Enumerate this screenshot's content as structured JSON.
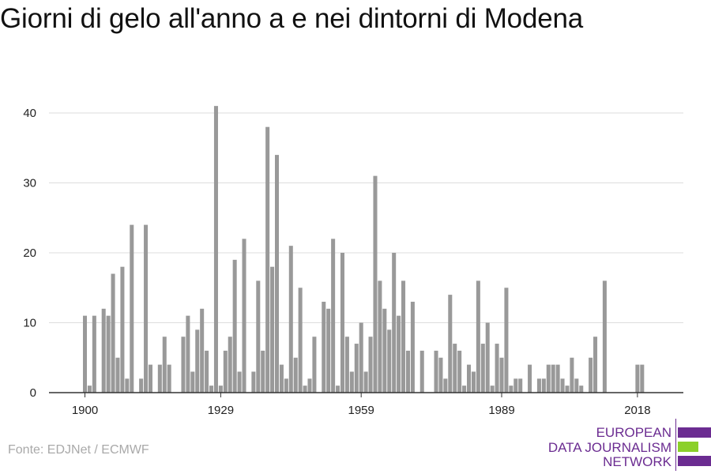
{
  "title": "Giorni di gelo all'anno a e nei dintorni di Modena",
  "source": "Fonte: EDJNet / ECMWF",
  "logo": {
    "line1": "EUROPEAN",
    "line2": "DATA JOURNALISM",
    "line3": "NETWORK",
    "purple": "#6b2c91",
    "green": "#8bd02a"
  },
  "colors": {
    "bar": "#999999",
    "grid": "#dddddd",
    "axis": "#333333"
  },
  "chart_data": {
    "type": "bar",
    "title": "Giorni di gelo all'anno a e nei dintorni di Modena",
    "xlabel": "",
    "ylabel": "",
    "ylim": [
      0,
      45
    ],
    "yticks": [
      0,
      10,
      20,
      30,
      40
    ],
    "xticks": [
      1900,
      1929,
      1959,
      1989,
      2018
    ],
    "grid": true,
    "x": [
      1900,
      1901,
      1902,
      1903,
      1904,
      1905,
      1906,
      1907,
      1908,
      1909,
      1910,
      1911,
      1912,
      1913,
      1914,
      1915,
      1916,
      1917,
      1918,
      1919,
      1920,
      1921,
      1922,
      1923,
      1924,
      1925,
      1926,
      1927,
      1928,
      1929,
      1930,
      1931,
      1932,
      1933,
      1934,
      1935,
      1936,
      1937,
      1938,
      1939,
      1940,
      1941,
      1942,
      1943,
      1944,
      1945,
      1946,
      1947,
      1948,
      1949,
      1950,
      1951,
      1952,
      1953,
      1954,
      1955,
      1956,
      1957,
      1958,
      1959,
      1960,
      1961,
      1962,
      1963,
      1964,
      1965,
      1966,
      1967,
      1968,
      1969,
      1970,
      1971,
      1972,
      1973,
      1974,
      1975,
      1976,
      1977,
      1978,
      1979,
      1980,
      1981,
      1982,
      1983,
      1984,
      1985,
      1986,
      1987,
      1988,
      1989,
      1990,
      1991,
      1992,
      1993,
      1994,
      1995,
      1996,
      1997,
      1998,
      1999,
      2000,
      2001,
      2002,
      2003,
      2004,
      2005,
      2006,
      2007,
      2008,
      2009,
      2010,
      2011,
      2012,
      2013,
      2014,
      2015,
      2016,
      2017,
      2018,
      2019
    ],
    "values": [
      11,
      1,
      11,
      0,
      12,
      11,
      17,
      5,
      18,
      2,
      24,
      0,
      2,
      24,
      4,
      0,
      4,
      8,
      4,
      0,
      0,
      8,
      11,
      3,
      9,
      12,
      6,
      1,
      41,
      1,
      6,
      8,
      19,
      3,
      22,
      0,
      3,
      16,
      6,
      38,
      18,
      34,
      4,
      2,
      21,
      5,
      15,
      1,
      2,
      8,
      0,
      13,
      12,
      22,
      1,
      20,
      8,
      3,
      7,
      10,
      3,
      8,
      31,
      16,
      12,
      9,
      20,
      11,
      16,
      6,
      13,
      0,
      6,
      0,
      0,
      6,
      5,
      2,
      14,
      7,
      6,
      1,
      4,
      3,
      16,
      7,
      10,
      1,
      7,
      5,
      15,
      1,
      2,
      2,
      0,
      4,
      0,
      2,
      2,
      4,
      4,
      4,
      2,
      1,
      5,
      2,
      1,
      0,
      5,
      8,
      0,
      16,
      0,
      0,
      0,
      0,
      0,
      0,
      4,
      4
    ]
  }
}
